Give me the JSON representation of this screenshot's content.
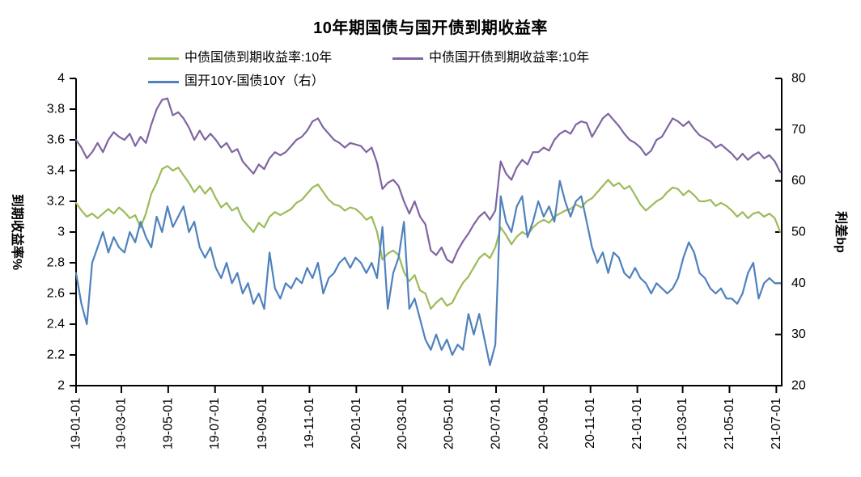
{
  "title": "10年期国债与国开债到期收益率",
  "legend": {
    "items": [
      {
        "label": "中债国债到期收益率:10年",
        "color": "#9BBB59"
      },
      {
        "label": "中债国开债到期收益率:10年",
        "color": "#8064A2"
      },
      {
        "label": "国开10Y-国债10Y（右）",
        "color": "#4F81BD"
      }
    ]
  },
  "y_left": {
    "title": "到期收益率%",
    "min": 2,
    "max": 4,
    "tick_labels": [
      "4",
      "3.8",
      "3.6",
      "3.4",
      "3.2",
      "3",
      "2.8",
      "2.6",
      "2.4",
      "2.2",
      "2"
    ]
  },
  "y_right": {
    "title": "利差bp",
    "min": 20,
    "max": 80,
    "tick_labels": [
      "80",
      "70",
      "60",
      "50",
      "40",
      "30",
      "20"
    ]
  },
  "x_axis": {
    "span_days": 919,
    "ticks": [
      {
        "label": "19-01-01",
        "day": 0
      },
      {
        "label": "19-03-01",
        "day": 59
      },
      {
        "label": "19-05-01",
        "day": 120
      },
      {
        "label": "19-07-01",
        "day": 181
      },
      {
        "label": "19-09-01",
        "day": 243
      },
      {
        "label": "19-11-01",
        "day": 304
      },
      {
        "label": "20-01-01",
        "day": 365
      },
      {
        "label": "20-03-01",
        "day": 425
      },
      {
        "label": "20-05-01",
        "day": 486
      },
      {
        "label": "20-07-01",
        "day": 547
      },
      {
        "label": "20-09-01",
        "day": 609
      },
      {
        "label": "20-11-01",
        "day": 670
      },
      {
        "label": "21-01-01",
        "day": 731
      },
      {
        "label": "21-03-01",
        "day": 790
      },
      {
        "label": "21-05-01",
        "day": 851
      },
      {
        "label": "21-07-01",
        "day": 912
      }
    ]
  },
  "chart_data": {
    "type": "line",
    "title": "10年期国债与国开债到期收益率",
    "x_start": "2019-01-01",
    "x_end": "2021-07-06",
    "sample_interval_days": 7,
    "y_left_range": [
      2,
      4
    ],
    "y_right_range": [
      20,
      80
    ],
    "grid": false,
    "legend_position": "top",
    "series": [
      {
        "name": "中债国债到期收益率:10年",
        "axis": "left",
        "color": "#9BBB59",
        "values": [
          3.19,
          3.14,
          3.1,
          3.12,
          3.09,
          3.12,
          3.15,
          3.12,
          3.16,
          3.13,
          3.09,
          3.11,
          3.03,
          3.12,
          3.25,
          3.32,
          3.41,
          3.43,
          3.4,
          3.42,
          3.37,
          3.32,
          3.26,
          3.3,
          3.25,
          3.29,
          3.22,
          3.16,
          3.19,
          3.14,
          3.16,
          3.08,
          3.04,
          3.0,
          3.06,
          3.03,
          3.1,
          3.13,
          3.11,
          3.13,
          3.15,
          3.19,
          3.21,
          3.25,
          3.29,
          3.31,
          3.26,
          3.21,
          3.18,
          3.17,
          3.14,
          3.16,
          3.15,
          3.12,
          3.08,
          3.1,
          3.0,
          2.82,
          2.86,
          2.88,
          2.85,
          2.74,
          2.68,
          2.72,
          2.62,
          2.6,
          2.5,
          2.54,
          2.57,
          2.52,
          2.54,
          2.61,
          2.67,
          2.71,
          2.77,
          2.83,
          2.86,
          2.83,
          2.9,
          3.03,
          2.98,
          2.92,
          2.97,
          3.0,
          2.98,
          3.03,
          3.06,
          3.08,
          3.06,
          3.1,
          3.12,
          3.14,
          3.15,
          3.18,
          3.16,
          3.2,
          3.22,
          3.26,
          3.3,
          3.34,
          3.3,
          3.32,
          3.28,
          3.3,
          3.24,
          3.18,
          3.14,
          3.17,
          3.2,
          3.22,
          3.26,
          3.29,
          3.28,
          3.24,
          3.27,
          3.24,
          3.2,
          3.2,
          3.21,
          3.17,
          3.19,
          3.17,
          3.14,
          3.1,
          3.13,
          3.09,
          3.12,
          3.13,
          3.1,
          3.12,
          3.09,
          3.0
        ]
      },
      {
        "name": "中债国开债到期收益率:10年",
        "axis": "left",
        "color": "#8064A2",
        "values": [
          3.6,
          3.55,
          3.48,
          3.52,
          3.58,
          3.52,
          3.6,
          3.65,
          3.62,
          3.6,
          3.64,
          3.56,
          3.62,
          3.58,
          3.7,
          3.8,
          3.86,
          3.87,
          3.76,
          3.78,
          3.74,
          3.68,
          3.6,
          3.66,
          3.6,
          3.64,
          3.6,
          3.55,
          3.58,
          3.52,
          3.54,
          3.46,
          3.42,
          3.38,
          3.44,
          3.41,
          3.48,
          3.52,
          3.5,
          3.52,
          3.56,
          3.6,
          3.62,
          3.66,
          3.72,
          3.74,
          3.68,
          3.64,
          3.6,
          3.58,
          3.55,
          3.58,
          3.57,
          3.56,
          3.52,
          3.55,
          3.45,
          3.28,
          3.32,
          3.34,
          3.3,
          3.2,
          3.12,
          3.2,
          3.1,
          3.05,
          2.88,
          2.85,
          2.9,
          2.82,
          2.8,
          2.88,
          2.94,
          2.99,
          3.05,
          3.1,
          3.13,
          3.08,
          3.14,
          3.46,
          3.38,
          3.34,
          3.42,
          3.47,
          3.44,
          3.52,
          3.52,
          3.55,
          3.53,
          3.6,
          3.64,
          3.66,
          3.64,
          3.7,
          3.72,
          3.71,
          3.62,
          3.68,
          3.74,
          3.77,
          3.73,
          3.69,
          3.64,
          3.6,
          3.58,
          3.55,
          3.5,
          3.53,
          3.6,
          3.62,
          3.68,
          3.74,
          3.72,
          3.69,
          3.72,
          3.67,
          3.63,
          3.61,
          3.59,
          3.55,
          3.57,
          3.54,
          3.51,
          3.47,
          3.51,
          3.47,
          3.5,
          3.52,
          3.48,
          3.5,
          3.46,
          3.39
        ]
      },
      {
        "name": "国开10Y-国债10Y（右）",
        "axis": "right",
        "color": "#4F81BD",
        "values": [
          42,
          36,
          32,
          44,
          47,
          50,
          46,
          49,
          47,
          46,
          50,
          48,
          52,
          49,
          47,
          53,
          50,
          55,
          51,
          53,
          55,
          50,
          52,
          47,
          45,
          47,
          43,
          41,
          44,
          40,
          42,
          38,
          40,
          36,
          38,
          35,
          46,
          39,
          37,
          40,
          39,
          41,
          40,
          43,
          41,
          44,
          38,
          41,
          42,
          44,
          45,
          43,
          45,
          44,
          42,
          44,
          41,
          51,
          35,
          42,
          45,
          52,
          35,
          37,
          33,
          29,
          27,
          30,
          27,
          29,
          26,
          28,
          27,
          34,
          30,
          34,
          29,
          24,
          28,
          57,
          52,
          50,
          55,
          57,
          49,
          52,
          56,
          53,
          55,
          52,
          60,
          56,
          53,
          56,
          57,
          52,
          47,
          44,
          46,
          42,
          46,
          45,
          42,
          41,
          43,
          41,
          40,
          38,
          40,
          39,
          38,
          39,
          41,
          45,
          48,
          46,
          42,
          41,
          39,
          38,
          39,
          37,
          37,
          36,
          38,
          42,
          44,
          37,
          40,
          41,
          40,
          40
        ]
      }
    ]
  }
}
